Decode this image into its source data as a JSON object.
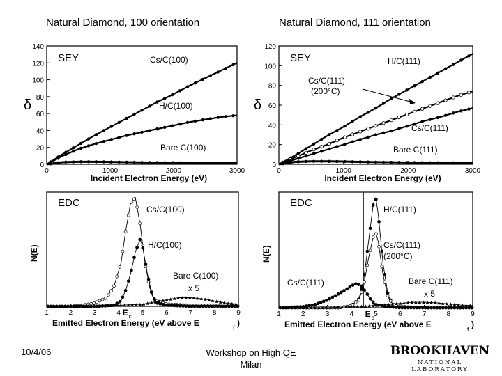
{
  "slide": {
    "title_left": "Natural Diamond, 100 orientation",
    "title_right": "Natural Diamond, 111 orientation",
    "footer_date": "10/4/06",
    "footer_event_line1": "Workshop on High QE",
    "footer_event_line2": "Milan",
    "logo_main": "BROOKHAVEN",
    "logo_sub": "NATIONAL LABORATORY"
  },
  "colors": {
    "ink": "#000000",
    "background": "#ffffff"
  },
  "chart_data": [
    {
      "id": "sey100",
      "type": "scatter",
      "panel_label": "SEY",
      "title": "Natural Diamond, 100 orientation",
      "xlabel": "Incident Electron Energy (eV)",
      "ylabel": "δ",
      "xlim": [
        0,
        3000
      ],
      "ylim": [
        0,
        140
      ],
      "xticks": [
        0,
        1000,
        2000,
        3000
      ],
      "yticks": [
        0,
        20,
        40,
        60,
        80,
        100,
        120,
        140
      ],
      "series": [
        {
          "name": "Cs/C(100)",
          "x": [
            0,
            250,
            500,
            750,
            1000,
            1250,
            1500,
            1750,
            2000,
            2250,
            2500,
            2750,
            3000
          ],
          "y": [
            0,
            12,
            23,
            34,
            44,
            54,
            64,
            74,
            83,
            93,
            102,
            111,
            120
          ]
        },
        {
          "name": "H/C(100)",
          "x": [
            0,
            250,
            500,
            750,
            1000,
            1250,
            1500,
            1750,
            2000,
            2250,
            2500,
            2750,
            3000
          ],
          "y": [
            0,
            10,
            18,
            24,
            29,
            34,
            38,
            42,
            46,
            50,
            53,
            56,
            58
          ]
        },
        {
          "name": "Bare C(100)",
          "x": [
            0,
            250,
            500,
            750,
            1000,
            1250,
            1500,
            1750,
            2000,
            2250,
            2500,
            2750,
            3000
          ],
          "y": [
            0,
            2.5,
            3,
            3,
            2.8,
            2.5,
            2.2,
            2,
            1.8,
            1.6,
            1.5,
            1.4,
            1.3
          ]
        }
      ]
    },
    {
      "id": "sey111",
      "type": "scatter",
      "panel_label": "SEY",
      "title": "Natural Diamond, 111 orientation",
      "xlabel": "Incident Electron Energy (eV)",
      "ylabel": "δ",
      "xlim": [
        0,
        3000
      ],
      "ylim": [
        0,
        120
      ],
      "xticks": [
        0,
        1000,
        2000,
        3000
      ],
      "yticks": [
        0,
        20,
        40,
        60,
        80,
        100,
        120
      ],
      "series": [
        {
          "name": "H/C(111)",
          "x": [
            0,
            250,
            500,
            750,
            1000,
            1250,
            1500,
            1750,
            2000,
            2250,
            2500,
            2750,
            3000
          ],
          "y": [
            0,
            9,
            19,
            29,
            38,
            48,
            57,
            67,
            76,
            85,
            94,
            103,
            112
          ]
        },
        {
          "name": "Cs/C(111) (200°C)",
          "x": [
            0,
            250,
            500,
            750,
            1000,
            1250,
            1500,
            1750,
            2000,
            2250,
            2500,
            2750,
            3000
          ],
          "y": [
            0,
            7,
            14,
            20,
            27,
            33,
            39,
            45,
            51,
            57,
            63,
            69,
            74
          ]
        },
        {
          "name": "Cs/C(111)",
          "x": [
            0,
            250,
            500,
            750,
            1000,
            1250,
            1500,
            1750,
            2000,
            2250,
            2500,
            2750,
            3000
          ],
          "y": [
            0,
            5,
            10,
            15,
            20,
            25,
            30,
            34,
            39,
            44,
            48,
            53,
            57
          ]
        },
        {
          "name": "Bare C(111)",
          "x": [
            0,
            250,
            500,
            750,
            1000,
            1250,
            1500,
            1750,
            2000,
            2250,
            2500,
            2750,
            3000
          ],
          "y": [
            0,
            2.5,
            3,
            3,
            2.8,
            2.5,
            2.2,
            2,
            1.8,
            1.6,
            1.5,
            1.4,
            1.3
          ]
        }
      ]
    },
    {
      "id": "edc100",
      "type": "line",
      "panel_label": "EDC",
      "xlabel": "Emitted Electron Energy (eV above E",
      "xlabel_sub": "f",
      "ylabel": "N(E)",
      "ec_label": "E",
      "ec_sub": "c",
      "ec_x": 4.1,
      "xlim": [
        1,
        9
      ],
      "ylim": [
        0,
        1.05
      ],
      "xticks": [
        1,
        2,
        3,
        4,
        5,
        6,
        7,
        8,
        9
      ],
      "series": [
        {
          "name": "Cs/C(100)",
          "x": [
            1,
            2,
            2.5,
            3,
            3.5,
            3.8,
            4.1,
            4.3,
            4.5,
            4.7,
            4.9,
            5.1,
            5.3,
            5.5,
            6,
            7,
            8,
            9
          ],
          "y": [
            0,
            0,
            0.01,
            0.03,
            0.08,
            0.18,
            0.4,
            0.7,
            0.95,
            1.0,
            0.75,
            0.4,
            0.17,
            0.06,
            0.02,
            0.01,
            0.01,
            0.01
          ]
        },
        {
          "name": "H/C(100)",
          "x": [
            1,
            3,
            3.8,
            4.1,
            4.3,
            4.5,
            4.7,
            4.9,
            5.0,
            5.2,
            5.4,
            5.6,
            6,
            7,
            9
          ],
          "y": [
            0,
            0,
            0.01,
            0.05,
            0.15,
            0.3,
            0.5,
            0.62,
            0.55,
            0.3,
            0.1,
            0.03,
            0.01,
            0,
            0
          ]
        },
        {
          "name": "Bare C(100) x 5",
          "x": [
            1,
            3,
            4,
            5,
            5.5,
            6,
            6.5,
            7,
            7.5,
            8,
            8.5,
            9
          ],
          "y": [
            0,
            0,
            0.01,
            0.02,
            0.04,
            0.06,
            0.08,
            0.08,
            0.07,
            0.05,
            0.03,
            0.02
          ]
        }
      ]
    },
    {
      "id": "edc111",
      "type": "line",
      "panel_label": "EDC",
      "xlabel": "Emitted Electron Energy (eV above E",
      "xlabel_sub": "f",
      "ylabel": "N(E)",
      "ec_label": "E",
      "ec_sub": "c",
      "ec_x": 4.5,
      "xlim": [
        1,
        9
      ],
      "ylim": [
        0,
        1.05
      ],
      "xticks": [
        1,
        2,
        3,
        4,
        5,
        6,
        7,
        8,
        9
      ],
      "series": [
        {
          "name": "H/C(111)",
          "x": [
            1,
            3.5,
            4.0,
            4.3,
            4.5,
            4.7,
            4.9,
            5.0,
            5.1,
            5.3,
            5.5,
            5.7,
            6,
            7,
            9
          ],
          "y": [
            0,
            0,
            0.02,
            0.08,
            0.25,
            0.6,
            0.95,
            1.0,
            0.85,
            0.4,
            0.12,
            0.03,
            0.01,
            0,
            0
          ]
        },
        {
          "name": "Cs/C(111) (200°C)",
          "x": [
            1,
            3.5,
            4.0,
            4.3,
            4.5,
            4.7,
            4.9,
            5.0,
            5.1,
            5.3,
            5.5,
            5.7,
            6,
            7,
            9
          ],
          "y": [
            0,
            0,
            0.02,
            0.07,
            0.2,
            0.45,
            0.65,
            0.68,
            0.6,
            0.3,
            0.1,
            0.03,
            0.01,
            0,
            0
          ]
        },
        {
          "name": "Cs/C(111)",
          "x": [
            1,
            2,
            2.5,
            3,
            3.5,
            3.8,
            4.0,
            4.2,
            4.4,
            4.6,
            4.8,
            5.0,
            5.5,
            6,
            9
          ],
          "y": [
            0,
            0.01,
            0.03,
            0.07,
            0.13,
            0.17,
            0.2,
            0.22,
            0.2,
            0.14,
            0.07,
            0.03,
            0.01,
            0,
            0
          ]
        },
        {
          "name": "Bare C(111) x 5",
          "x": [
            1,
            3,
            4,
            5,
            5.5,
            6,
            6.5,
            7,
            7.5,
            8,
            8.5,
            9
          ],
          "y": [
            0,
            0,
            0.01,
            0.02,
            0.03,
            0.04,
            0.05,
            0.05,
            0.045,
            0.035,
            0.025,
            0.02
          ]
        }
      ]
    }
  ]
}
